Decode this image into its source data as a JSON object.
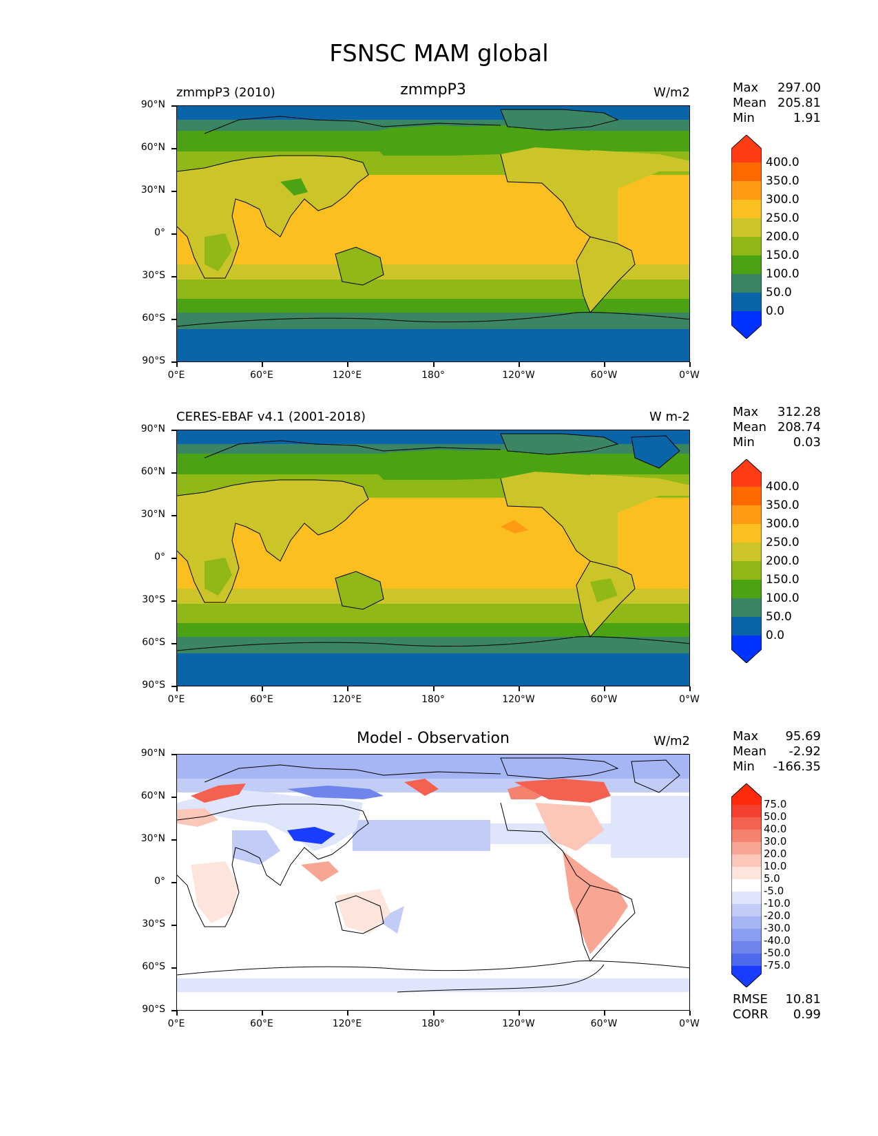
{
  "figure": {
    "title": "FSNSC MAM global"
  },
  "axes": {
    "lat_labels": [
      "90°N",
      "60°N",
      "30°N",
      "0°",
      "30°S",
      "60°S",
      "90°S"
    ],
    "lon_labels": [
      "0°E",
      "60°E",
      "120°E",
      "180°",
      "120°W",
      "60°W",
      "0°W"
    ]
  },
  "panels": [
    {
      "id": "model",
      "title_left": "zmmpP3 (2010)",
      "title_center": "zmmpP3",
      "units": "W/m2",
      "stats": {
        "max_label": "Max",
        "max_value": "297.00",
        "mean_label": "Mean",
        "mean_value": "205.81",
        "min_label": "Min",
        "min_value": "1.91"
      },
      "colorbar": {
        "levels": [
          "400.0",
          "350.0",
          "300.0",
          "250.0",
          "200.0",
          "150.0",
          "100.0",
          "50.0",
          "0.0"
        ],
        "colors": [
          "#ff3c14",
          "#ff6a00",
          "#ff9a14",
          "#fbc01f",
          "#ccc52a",
          "#90b816",
          "#4ba313",
          "#3a8562",
          "#0a65a8",
          "#0033ff"
        ]
      }
    },
    {
      "id": "obs",
      "title_left": "CERES-EBAF v4.1 (2001-2018)",
      "title_center": "",
      "units": "W m-2",
      "stats": {
        "max_label": "Max",
        "max_value": "312.28",
        "mean_label": "Mean",
        "mean_value": "208.74",
        "min_label": "Min",
        "min_value": "0.03"
      },
      "colorbar": {
        "levels": [
          "400.0",
          "350.0",
          "300.0",
          "250.0",
          "200.0",
          "150.0",
          "100.0",
          "50.0",
          "0.0"
        ],
        "colors": [
          "#ff3c14",
          "#ff6a00",
          "#ff9a14",
          "#fbc01f",
          "#ccc52a",
          "#90b816",
          "#4ba313",
          "#3a8562",
          "#0a65a8",
          "#0033ff"
        ]
      }
    },
    {
      "id": "diff",
      "title_left": "",
      "title_center": "Model - Observation",
      "units": "W/m2",
      "stats": {
        "max_label": "Max",
        "max_value": "95.69",
        "mean_label": "Mean",
        "mean_value": "-2.92",
        "min_label": "Min",
        "min_value": "-166.35"
      },
      "colorbar": {
        "levels": [
          "75.0",
          "50.0",
          "40.0",
          "30.0",
          "20.0",
          "10.0",
          "5.0",
          "-5.0",
          "-10.0",
          "-20.0",
          "-30.0",
          "-40.0",
          "-50.0",
          "-75.0"
        ],
        "colors": [
          "#ff2a0a",
          "#f5402f",
          "#f46150",
          "#f5826f",
          "#f8a593",
          "#fbc7b9",
          "#fde5dc",
          "#ffffff",
          "#dfe6fb",
          "#c2cdf7",
          "#a6b5f3",
          "#8b9df0",
          "#6f85ec",
          "#4d69ee",
          "#1a3cff"
        ]
      },
      "metrics": {
        "rmse_label": "RMSE",
        "rmse_value": "10.81",
        "corr_label": "CORR",
        "corr_value": "0.99"
      }
    }
  ]
}
